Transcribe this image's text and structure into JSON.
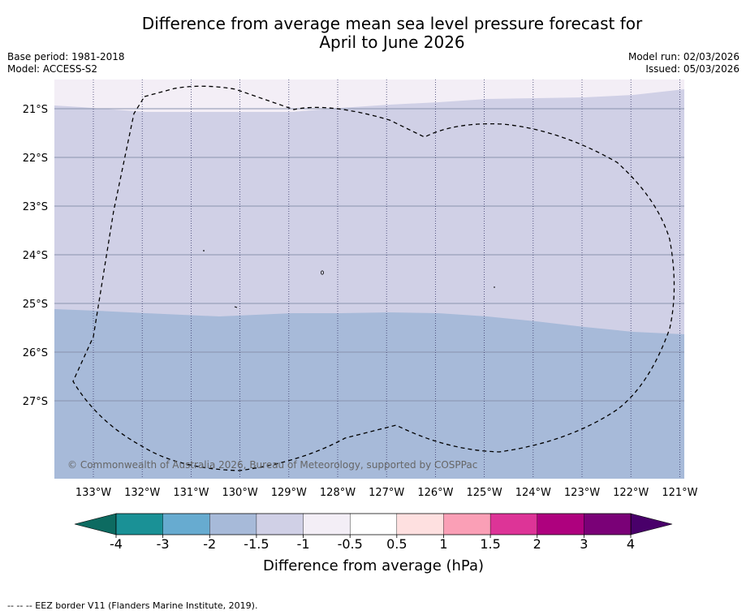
{
  "title_line1": "Difference from average mean sea level pressure forecast for",
  "title_line2": "April to June 2026",
  "base_period": "Base period: 1981-2018",
  "model": "Model: ACCESS-S2",
  "model_run": "Model run: 02/03/2026",
  "issued": "Issued: 05/03/2026",
  "copyright": "© Commonwealth of Australia 2026, Bureau of Meteorology, supported by COSPPac",
  "lat_labels": [
    "21°S",
    "22°S",
    "23°S",
    "24°S",
    "25°S",
    "26°S",
    "27°S"
  ],
  "lon_labels": [
    "133°W",
    "132°W",
    "131°W",
    "130°W",
    "129°W",
    "128°W",
    "127°W",
    "126°W",
    "125°W",
    "124°W",
    "123°W",
    "122°W",
    "121°W"
  ],
  "colorbar": {
    "title": "Difference from average (hPa)",
    "tick_labels": [
      "-4",
      "-3",
      "-2",
      "-1.5",
      "-1",
      "-0.5",
      "0.5",
      "1",
      "1.5",
      "2",
      "3",
      "4"
    ],
    "colors": [
      "#1a9196",
      "#67abd0",
      "#a7bad9",
      "#d0d0e6",
      "#f3eef6",
      "#ffffff",
      "#fee0e0",
      "#fa9fb6",
      "#dd3497",
      "#ae017e",
      "#7a0177"
    ],
    "under_color": "#0d6b61",
    "over_color": "#49006a"
  },
  "legend": {
    "upper_band_color": "#f3eef6",
    "middle_band_color": "#d0d0e6",
    "lower_band_color": "#a7bad9"
  },
  "footer": "--  --  -- EEZ border V11 (Flanders Marine Institute, 2019)."
}
